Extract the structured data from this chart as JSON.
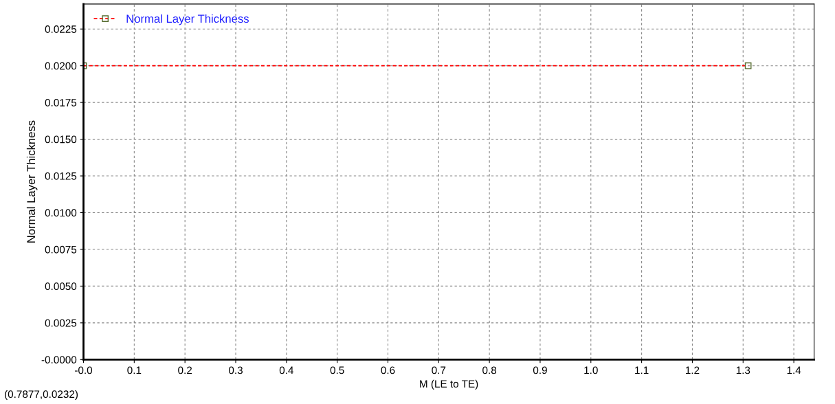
{
  "chart_data": {
    "type": "line",
    "x": [
      0.0,
      1.31
    ],
    "series": [
      {
        "name": "Normal Layer Thickness",
        "color": "#ff0000",
        "values": [
          0.02,
          0.02
        ]
      }
    ],
    "xlabel": "M (LE to TE)",
    "ylabel": "Normal Layer Thickness",
    "xlim": [
      0.0,
      1.44
    ],
    "ylim": [
      0.0,
      0.0242
    ],
    "xticks": [
      {
        "value": 0.0,
        "label": "-0.0"
      },
      0.1,
      0.2,
      0.3,
      0.4,
      0.5,
      0.6,
      0.7,
      0.8,
      0.9,
      {
        "value": 1.0,
        "label": "1.0"
      },
      1.1,
      1.2,
      1.3,
      1.4
    ],
    "yticks": [
      {
        "value": 0.0,
        "label": "-0.0000"
      },
      {
        "value": 0.0025,
        "label": "0.0025"
      },
      {
        "value": 0.005,
        "label": "0.0050"
      },
      {
        "value": 0.0075,
        "label": "0.0075"
      },
      {
        "value": 0.01,
        "label": "0.0100"
      },
      {
        "value": 0.0125,
        "label": "0.0125"
      },
      {
        "value": 0.015,
        "label": "0.0150"
      },
      {
        "value": 0.0175,
        "label": "0.0175"
      },
      {
        "value": 0.02,
        "label": "0.0200"
      },
      {
        "value": 0.0225,
        "label": "0.0225"
      }
    ],
    "annotations": [
      "(0.7877,0.0232)"
    ],
    "grid": true,
    "legend": "top left",
    "marker": "square",
    "line_style": "dashed"
  }
}
